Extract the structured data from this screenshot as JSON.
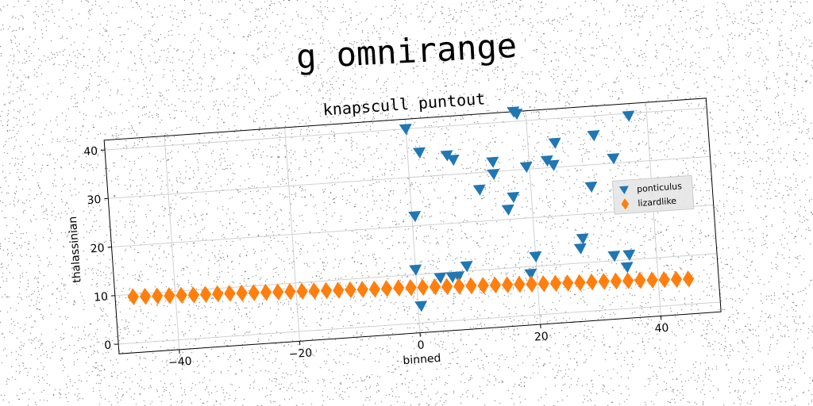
{
  "suptitle": "g omnirange",
  "chart_data": {
    "type": "scatter",
    "title": "knapscull puntout",
    "xlabel": "binned",
    "ylabel": "thalassinian",
    "xlim": [
      -50,
      50
    ],
    "ylim": [
      -2,
      42
    ],
    "xticks": [
      -40,
      -20,
      0,
      20,
      40
    ],
    "yticks": [
      0,
      10,
      20,
      30,
      40
    ],
    "grid": true,
    "legend": "center-right",
    "series": [
      {
        "name": "ponticulus",
        "marker": "triangle-down",
        "color": "#1f77b4",
        "x": [
          0,
          0,
          0.5,
          0.5,
          2,
          4,
          6,
          6.5,
          7,
          7.5,
          8.5,
          11.5,
          14,
          14,
          16,
          17,
          18,
          18.5,
          19,
          19.5,
          20,
          23,
          24,
          24.5,
          27.5,
          28,
          30,
          31,
          33,
          34,
          35,
          35.5,
          37
        ],
        "y": [
          40,
          11,
          3.5,
          22,
          35,
          9,
          9,
          34,
          9,
          33,
          11,
          26.5,
          32,
          29.5,
          22,
          24.5,
          42,
          41.5,
          8.5,
          30.5,
          12,
          31.5,
          30.5,
          35,
          13,
          15,
          25.5,
          36,
          11,
          31,
          8.5,
          11,
          39.5
        ]
      },
      {
        "name": "lizardlike",
        "marker": "diamond",
        "color": "#ff7f0e",
        "x": [
          -47,
          -45,
          -43,
          -41,
          -39,
          -37,
          -35,
          -33,
          -31,
          -29,
          -27,
          -25,
          -23,
          -21,
          -19,
          -17,
          -15,
          -13,
          -11,
          -9,
          -7,
          -5,
          -3,
          -1,
          1,
          3,
          5,
          7,
          9,
          11,
          13,
          15,
          17,
          19,
          21,
          23,
          25,
          27,
          29,
          31,
          33,
          35,
          37,
          39,
          41,
          43,
          45
        ],
        "y": [
          9.5,
          9.4,
          9.3,
          9.2,
          9.1,
          9.0,
          8.95,
          8.9,
          8.8,
          8.7,
          8.6,
          8.5,
          8.4,
          8.3,
          8.2,
          8.1,
          8.0,
          7.9,
          7.8,
          7.7,
          7.6,
          7.55,
          7.5,
          7.4,
          7.3,
          7.2,
          7.1,
          7.0,
          6.9,
          6.8,
          6.7,
          6.6,
          6.5,
          6.4,
          6.3,
          6.2,
          6.1,
          6.0,
          5.95,
          5.9,
          5.8,
          5.7,
          5.6,
          5.5,
          5.4,
          5.3,
          5.2
        ]
      }
    ]
  }
}
